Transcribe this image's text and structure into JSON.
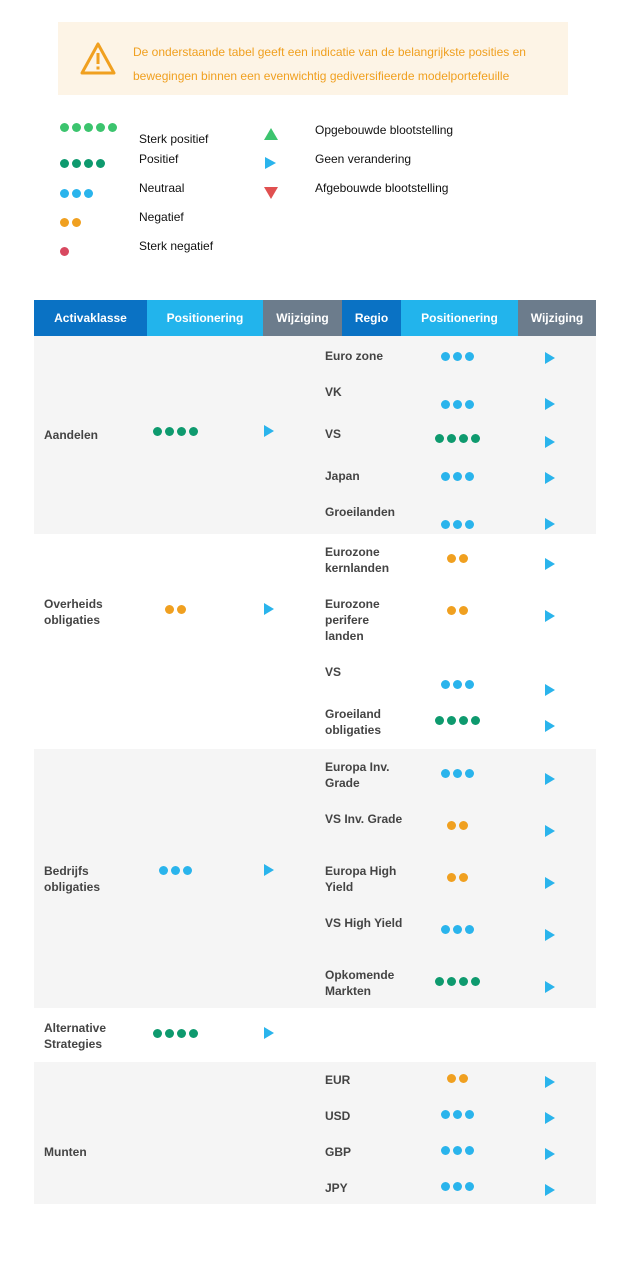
{
  "notice": {
    "icon": "warning-icon",
    "color": "#f0a020",
    "text": "De onderstaande tabel geeft een indicatie van de belangrijkste posities en bewegingen binnen een evenwichtig gediversifieerde modelportefeuille"
  },
  "legend": {
    "levels": [
      {
        "key": "sterk-positief",
        "label": "Sterk positief",
        "dots": 5,
        "color": "#3cc46e"
      },
      {
        "key": "positief",
        "label": "Positief",
        "dots": 4,
        "color": "#0e9a6e"
      },
      {
        "key": "neutraal",
        "label": "Neutraal",
        "dots": 3,
        "color": "#2ab4ec"
      },
      {
        "key": "negatief",
        "label": "Negatief",
        "dots": 2,
        "color": "#f0a020"
      },
      {
        "key": "sterk-negatief",
        "label": "Sterk negatief",
        "dots": 1,
        "color": "#d84860"
      }
    ],
    "changes": [
      {
        "key": "up",
        "label": "Opgebouwde blootstelling",
        "icon": "triangle-up-icon",
        "color": "#3cc46e"
      },
      {
        "key": "same",
        "label": "Geen verandering",
        "icon": "triangle-right-icon",
        "color": "#2ab4ec"
      },
      {
        "key": "down",
        "label": "Afgebouwde blootstelling",
        "icon": "triangle-down-icon",
        "color": "#e05050"
      }
    ]
  },
  "table": {
    "headers": {
      "asset_class": "Activaklasse",
      "positioning": "Positionering",
      "change": "Wijziging",
      "region": "Regio",
      "positioning2": "Positionering",
      "change2": "Wijziging"
    },
    "header_colors": {
      "dark_blue": "#0a72c4",
      "light_blue": "#22b4ec",
      "grey": "#6c7c8c"
    },
    "groups": [
      {
        "label": "Aandelen",
        "dots": 4,
        "change": "same",
        "regions": [
          {
            "label": "Euro zone",
            "dots": 3,
            "change": "same"
          },
          {
            "label": "VK",
            "dots": 3,
            "change": "same"
          },
          {
            "label": "VS",
            "dots": 4,
            "change": "same"
          },
          {
            "label": "Japan",
            "dots": 3,
            "change": "same"
          },
          {
            "label": "Groeilanden",
            "dots": 3,
            "change": "same"
          }
        ]
      },
      {
        "label": "Overheids obligaties",
        "dots": 2,
        "change": "same",
        "regions": [
          {
            "label": "Eurozone kernlanden",
            "dots": 2,
            "change": "same"
          },
          {
            "label": "Eurozone perifere landen",
            "dots": 2,
            "change": "same"
          },
          {
            "label": "VS",
            "dots": 3,
            "change": "same"
          },
          {
            "label": "Groeiland obligaties",
            "dots": 4,
            "change": "same"
          }
        ]
      },
      {
        "label": "Bedrijfs obligaties",
        "dots": 3,
        "change": "same",
        "regions": [
          {
            "label": "Europa Inv. Grade",
            "dots": 3,
            "change": "same"
          },
          {
            "label": "VS Inv. Grade",
            "dots": 2,
            "change": "same"
          },
          {
            "label": "Europa High Yield",
            "dots": 2,
            "change": "same"
          },
          {
            "label": "VS High Yield",
            "dots": 3,
            "change": "same"
          },
          {
            "label": "Opkomende Markten",
            "dots": 4,
            "change": "same"
          }
        ]
      },
      {
        "label": "Alternative Strategies",
        "dots": 4,
        "change": "same",
        "regions": []
      },
      {
        "label": "Munten",
        "dots": 0,
        "change": "",
        "regions": [
          {
            "label": "EUR",
            "dots": 2,
            "change": "same"
          },
          {
            "label": "USD",
            "dots": 3,
            "change": "same"
          },
          {
            "label": "GBP",
            "dots": 3,
            "change": "same"
          },
          {
            "label": "JPY",
            "dots": 3,
            "change": "same"
          }
        ]
      }
    ]
  }
}
